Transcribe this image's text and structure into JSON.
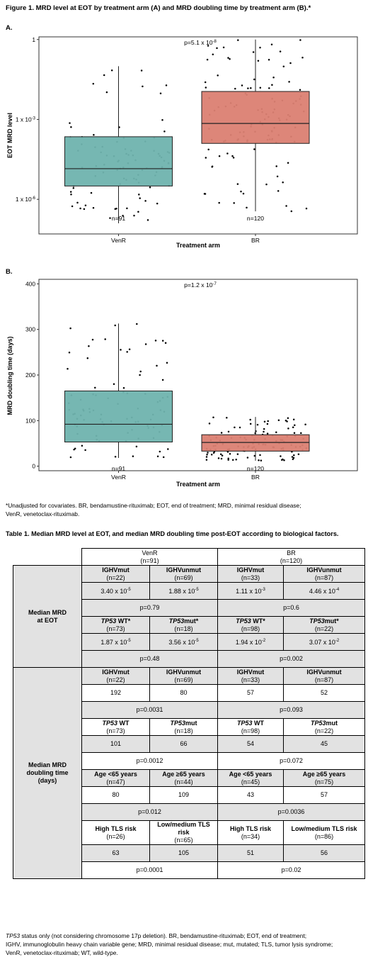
{
  "figure": {
    "title": "Figure 1. MRD level at EOT by treatment arm (A) and MRD doubling time by treatment arm (B).*",
    "panel_a_letter": "A.",
    "panel_b_letter": "B.",
    "footnote": "*Unadjusted for covariates. BR, bendamustine-rituximab; EOT, end of treatment; MRD, minimal residual disease;\nVenR, venetoclax-rituximab."
  },
  "chart_data": [
    {
      "type": "box",
      "xlabel": "Treatment arm",
      "ylabel": "EOT MRD level",
      "yscale": "log10",
      "ylim_log10": [
        -7.3,
        0.1
      ],
      "yticks": [
        {
          "value_log10": 0,
          "label": "1"
        },
        {
          "value_log10": -3,
          "base": "1 x 10",
          "exp": "-3"
        },
        {
          "value_log10": -6,
          "base": "1 x 10",
          "exp": "-6"
        }
      ],
      "annotation": {
        "base": "p=5.1 x 10",
        "exp": "-8"
      },
      "grid": false,
      "categories": [
        "VenR",
        "BR"
      ],
      "colors": [
        "#6fb3ae",
        "#db7f72"
      ],
      "n_labels": [
        "n=91",
        "n=120"
      ],
      "boxes_log10": [
        {
          "whisker_low": -6.9,
          "q1": -5.5,
          "median": -4.85,
          "q3": -3.65,
          "whisker_high": -1.0
        },
        {
          "whisker_low": -6.45,
          "q1": -3.9,
          "median": -3.15,
          "q3": -1.95,
          "whisker_high": 0.0
        }
      ],
      "points": {
        "counts": [
          91,
          120
        ],
        "seeds": [
          11,
          23
        ]
      }
    },
    {
      "type": "box",
      "xlabel": "Treatment arm",
      "ylabel": "MRD doubling time (days)",
      "yscale": "linear",
      "ylim": [
        -10,
        410
      ],
      "yticks": [
        0,
        100,
        200,
        300,
        400
      ],
      "annotation": {
        "base": "p=1.2 x 10",
        "exp": "-7"
      },
      "grid": false,
      "categories": [
        "VenR",
        "BR"
      ],
      "colors": [
        "#6fb3ae",
        "#db7f72"
      ],
      "n_labels": [
        "n=91",
        "n=120"
      ],
      "boxes": [
        {
          "whisker_low": 18,
          "q1": 53,
          "median": 92,
          "q3": 165,
          "whisker_high": 313
        },
        {
          "whisker_low": 12,
          "q1": 33,
          "median": 52,
          "q3": 69,
          "whisker_high": 108
        }
      ],
      "points": {
        "counts": [
          91,
          120
        ],
        "seeds": [
          37,
          53
        ]
      }
    }
  ],
  "table": {
    "title": "Table 1. Median MRD level at EOT, and median MRD doubling time post-EOT according to biological factors.",
    "arm_venr": "VenR",
    "arm_venr_n": "(n=91)",
    "arm_br": "BR",
    "arm_br_n": "(n=120)",
    "section1_label": "Median MRD\nat EOT",
    "section2_label": "Median MRD\ndoubling time\n(days)",
    "s1": {
      "ighvmut": "IGHVmut",
      "ighvunmut": "IGHVunmut",
      "n_venr_mut": "(n=22)",
      "n_venr_unmut": "(n=69)",
      "n_br_mut": "(n=33)",
      "n_br_unmut": "(n=87)",
      "v1": {
        "base": "3.40 x 10",
        "exp": "-5"
      },
      "v2": {
        "base": "1.88 x 10",
        "exp": "-5"
      },
      "v3": {
        "base": "1.11 x 10",
        "exp": "-3"
      },
      "v4": {
        "base": "4.46 x 10",
        "exp": "-4"
      },
      "p_venr_ighv": "p=0.79",
      "p_br_ighv": "p=0.6",
      "tp53": "TP53",
      "wt_star": " WT*",
      "mut_star": "mut*",
      "n_venr_wt": "(n=73)",
      "n_venr_tmut": "(n=18)",
      "n_br_wt": "(n=98)",
      "n_br_tmut": "(n=22)",
      "v5": {
        "base": "1.87 x 10",
        "exp": "-5"
      },
      "v6": {
        "base": "3.56 x 10",
        "exp": "-5"
      },
      "v7": {
        "base": "1.94 x 10",
        "exp": "-2"
      },
      "v8": {
        "base": "3.07 x 10",
        "exp": "-2"
      },
      "p_venr_tp53": "p=0.48",
      "p_br_tp53": "p=0.002"
    },
    "s2": {
      "ighvmut": "IGHVmut",
      "ighvunmut": "IGHVunmut",
      "n_venr_mut": "(n=22)",
      "n_venr_unmut": "(n=69)",
      "n_br_mut": "(n=33)",
      "n_br_unmut": "(n=87)",
      "ighv_values": [
        "192",
        "80",
        "57",
        "52"
      ],
      "p_venr_ighv": "p=0.0031",
      "p_br_ighv": "p=0.093",
      "tp53": "TP53",
      "wt": " WT",
      "mut": "mut",
      "n_venr_wt": "(n=73)",
      "n_venr_tmut": "(n=18)",
      "n_br_wt": "(n=98)",
      "n_br_tmut": "(n=22)",
      "tp53_values": [
        "101",
        "66",
        "54",
        "45"
      ],
      "p_venr_tp53": "p=0.0012",
      "p_br_tp53": "p=0.072",
      "age_lt": "Age <65 years",
      "age_ge": "Age ≥65 years",
      "n_venr_lt": "(n=47)",
      "n_venr_ge": "(n=44)",
      "n_br_lt": "(n=45)",
      "n_br_ge": "(n=75)",
      "age_values": [
        "80",
        "109",
        "43",
        "57"
      ],
      "p_venr_age": "p=0.012",
      "p_br_age": "p=0.0036",
      "tls_high": "High TLS risk",
      "tls_low": "Low/medium TLS risk",
      "n_venr_high": "(n=26)",
      "n_venr_low": "(n=65)",
      "n_br_high": "(n=34)",
      "n_br_low": "(n=86)",
      "tls_values": [
        "63",
        "105",
        "51",
        "56"
      ],
      "p_venr_tls": "p=0.0001",
      "p_br_tls": "p=0.02"
    },
    "footnote_tp53": "TP53",
    "footnote_rest": " status only (not considering chromosome 17p deletion). BR, bendamustine-rituximab; EOT, end of treatment;\nIGHV, immunoglobulin heavy chain variable gene; MRD, minimal residual disease; mut, mutated; TLS, tumor lysis syndrome;\nVenR, venetoclax-rituximab; WT, wild-type."
  }
}
